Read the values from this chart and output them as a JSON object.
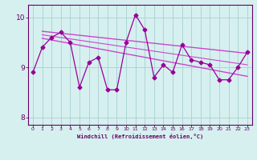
{
  "x": [
    0,
    1,
    2,
    3,
    4,
    5,
    6,
    7,
    8,
    9,
    10,
    11,
    12,
    13,
    14,
    15,
    16,
    17,
    18,
    19,
    20,
    21,
    22,
    23
  ],
  "y": [
    8.9,
    9.4,
    9.6,
    9.7,
    9.5,
    8.6,
    9.1,
    9.2,
    8.55,
    8.55,
    9.5,
    10.05,
    9.75,
    8.8,
    9.05,
    8.9,
    9.45,
    9.15,
    9.1,
    9.05,
    8.75,
    8.75,
    9.0,
    9.3
  ],
  "line_color": "#990099",
  "trend_color": "#cc44cc",
  "bg_color": "#d6f0f0",
  "grid_color": "#aed4d4",
  "axis_color": "#660066",
  "tick_color": "#660066",
  "xlabel": "Windchill (Refroidissement éolien,°C)",
  "ylim": [
    7.85,
    10.25
  ],
  "xlim": [
    -0.5,
    23.5
  ],
  "yticks": [
    8,
    9,
    10
  ],
  "xticks": [
    0,
    1,
    2,
    3,
    4,
    5,
    6,
    7,
    8,
    9,
    10,
    11,
    12,
    13,
    14,
    15,
    16,
    17,
    18,
    19,
    20,
    21,
    22,
    23
  ],
  "trend1_x": [
    1,
    23
  ],
  "trend1_y": [
    9.72,
    9.28
  ],
  "trend2_x": [
    1,
    23
  ],
  "trend2_y": [
    9.58,
    8.82
  ],
  "trend3_x": [
    1,
    23
  ],
  "trend3_y": [
    9.65,
    9.05
  ]
}
